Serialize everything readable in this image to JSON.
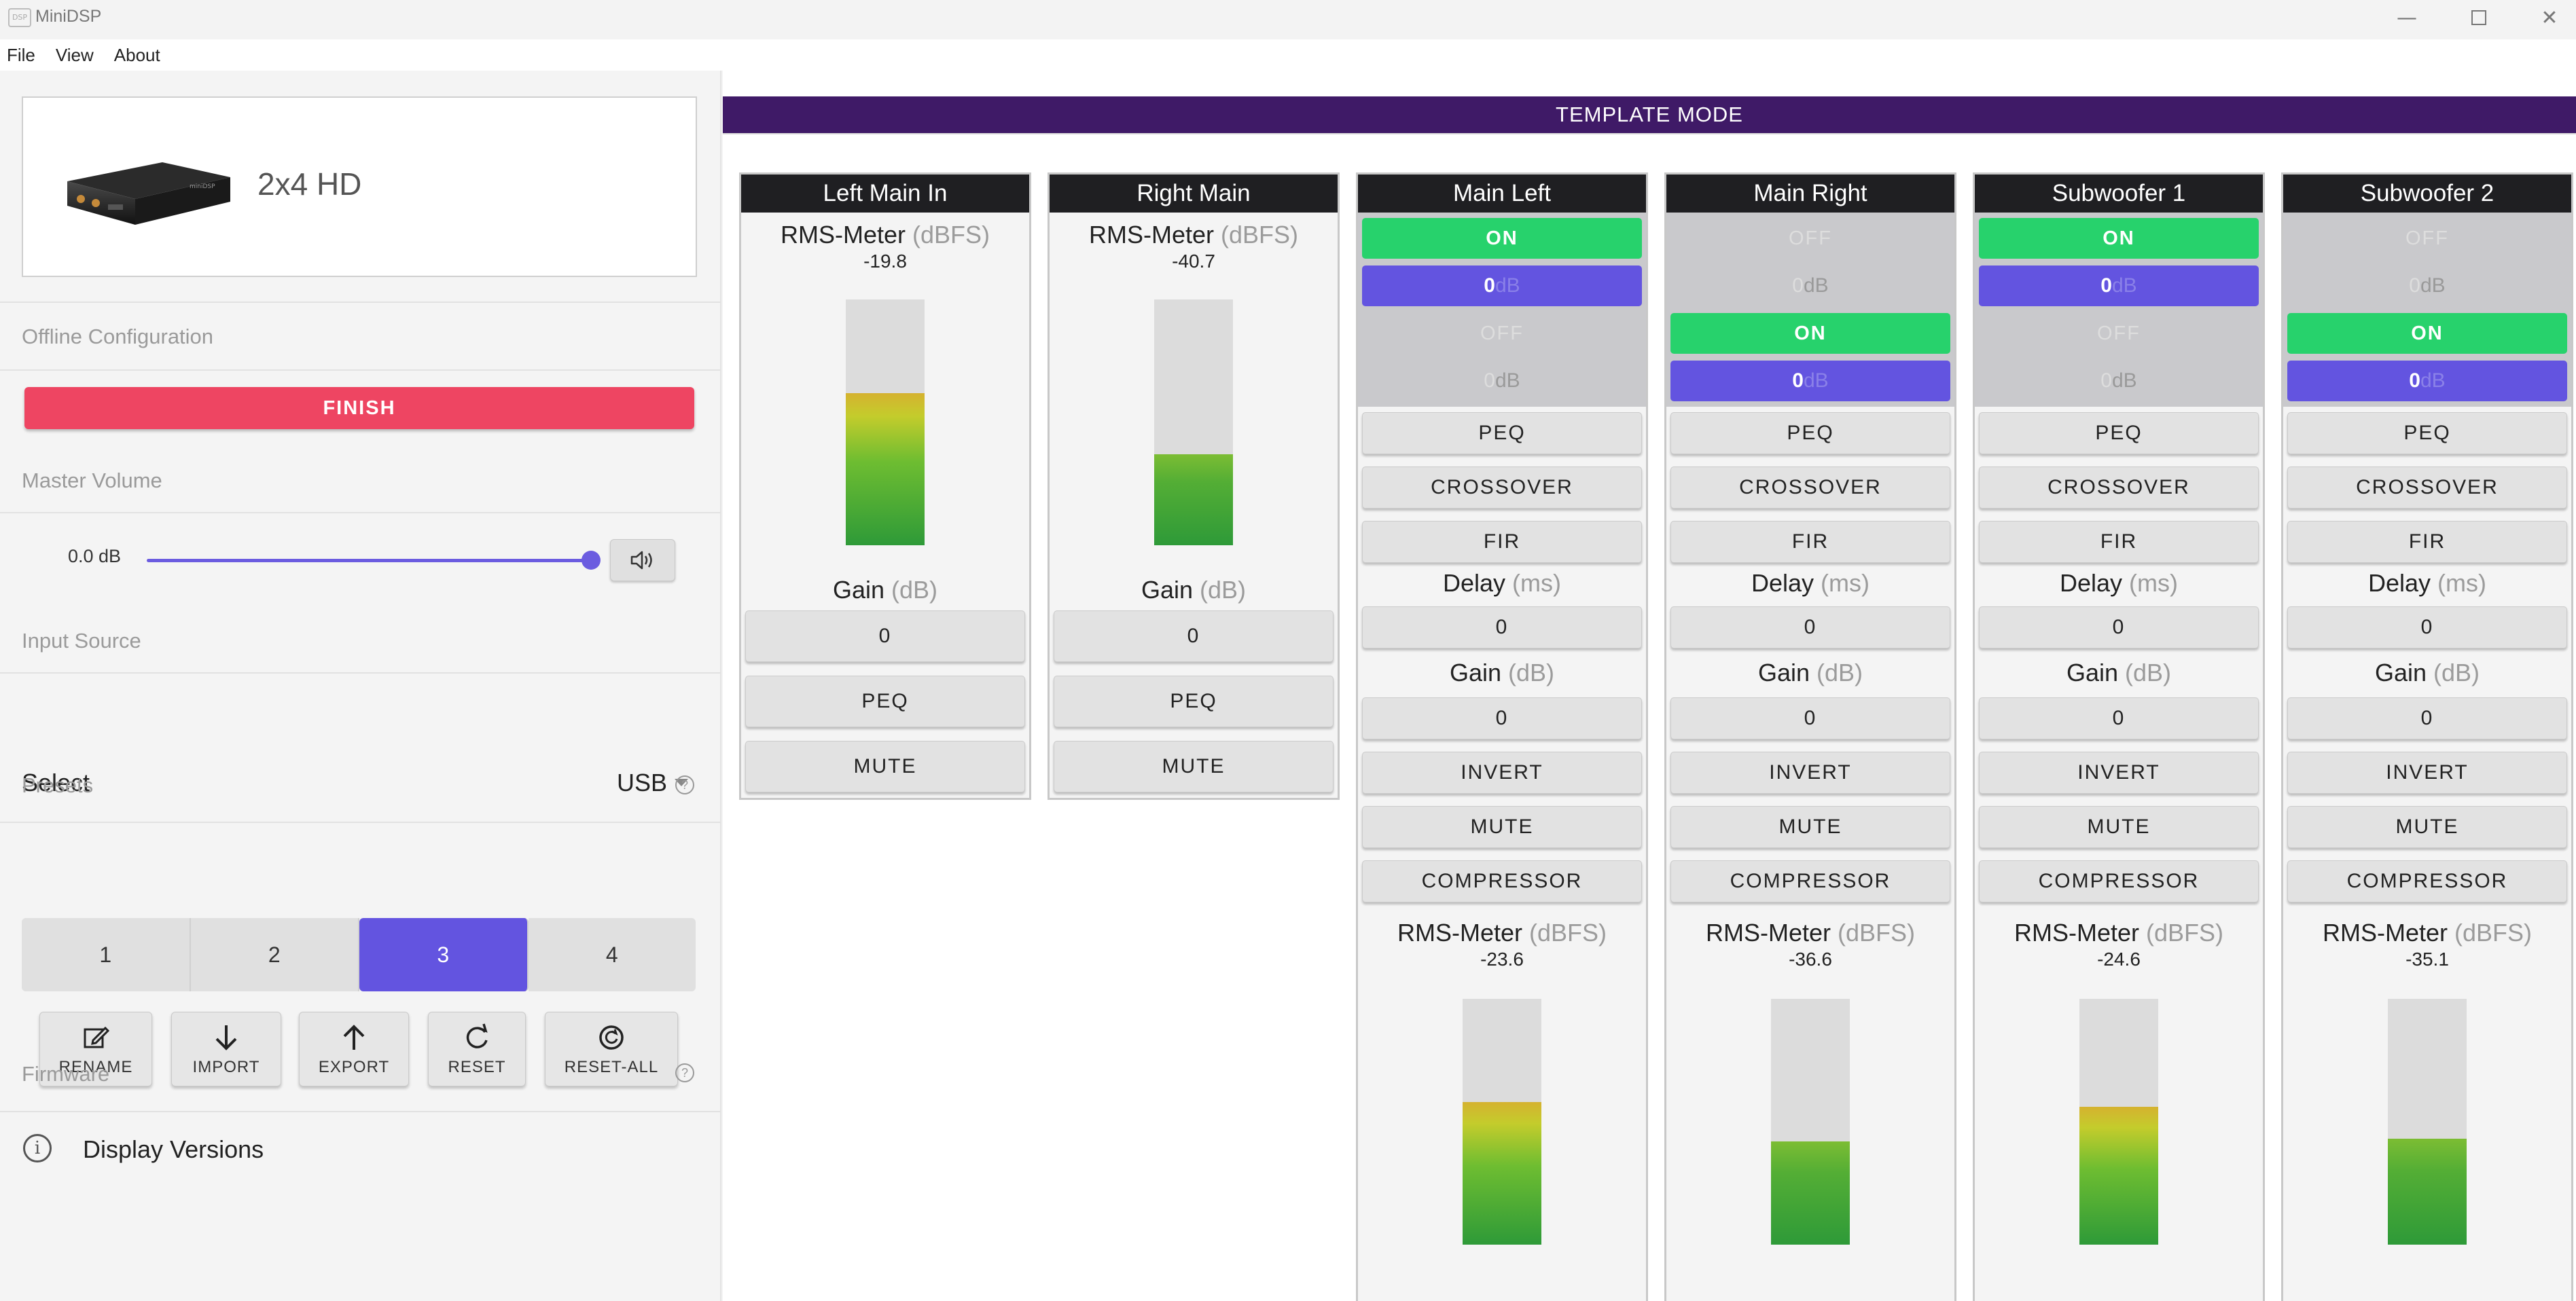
{
  "window": {
    "title": "MiniDSP",
    "icon_text": "DSP"
  },
  "menu": [
    "File",
    "View",
    "About"
  ],
  "sidebar": {
    "device_name": "2x4 HD",
    "offline_label": "Offline Configuration",
    "finish_label": "FINISH",
    "master_volume_label": "Master Volume",
    "master_volume_value": "0.0 dB",
    "master_volume_level": 1.0,
    "input_source_label": "Input Source",
    "select_label": "Select",
    "select_value": "USB",
    "presets_label": "Presets",
    "presets": [
      "1",
      "2",
      "3",
      "4"
    ],
    "active_preset": "3",
    "actions": [
      "RENAME",
      "IMPORT",
      "EXPORT",
      "RESET",
      "RESET-ALL"
    ],
    "firmware_label": "Firmware",
    "display_versions": "Display Versions"
  },
  "main": {
    "banner": "TEMPLATE MODE",
    "meter_title": "RMS-Meter",
    "meter_unit": "(dBFS)",
    "gain_title": "Gain",
    "gain_unit": "(dB)",
    "delay_title": "Delay",
    "delay_unit": "(ms)",
    "on_label": "ON",
    "off_label": "OFF",
    "db_value": "0",
    "db_unit": "dB",
    "peq": "PEQ",
    "crossover": "CROSSOVER",
    "fir": "FIR",
    "invert": "INVERT",
    "mute": "MUTE",
    "compressor": "COMPRESSOR",
    "inputs": [
      {
        "name": "Left Main In",
        "meter_value": "-19.8",
        "level": 0.62,
        "gain": "0"
      },
      {
        "name": "Right Main",
        "meter_value": "-40.7",
        "level": 0.37,
        "gain": "0"
      }
    ],
    "outputs": [
      {
        "name": "Main Left",
        "route1_on": true,
        "route2_on": false,
        "delay": "0",
        "gain": "0",
        "meter_value": "-23.6",
        "level": 0.58
      },
      {
        "name": "Main Right",
        "route1_on": false,
        "route2_on": true,
        "delay": "0",
        "gain": "0",
        "meter_value": "-36.6",
        "level": 0.42
      },
      {
        "name": "Subwoofer 1",
        "route1_on": true,
        "route2_on": false,
        "delay": "0",
        "gain": "0",
        "meter_value": "-24.6",
        "level": 0.56
      },
      {
        "name": "Subwoofer 2",
        "route1_on": false,
        "route2_on": true,
        "delay": "0",
        "gain": "0",
        "meter_value": "-35.1",
        "level": 0.43
      }
    ]
  }
}
